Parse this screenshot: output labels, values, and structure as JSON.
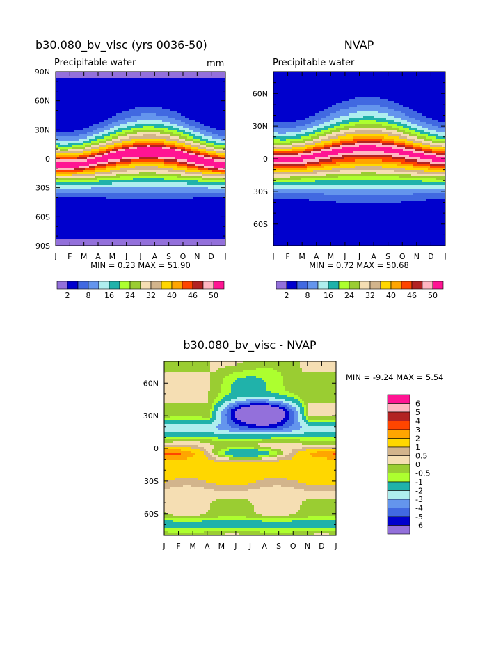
{
  "chart_data": [
    {
      "type": "heatmap",
      "id": "model",
      "title": "b30.080_bv_visc (yrs 0036-50)",
      "subtitle": "Precipitable water",
      "units": "mm",
      "y_ticks": [
        "90N",
        "60N",
        "30N",
        "0",
        "30S",
        "60S",
        "90S"
      ],
      "x_ticks": [
        "J",
        "F",
        "M",
        "A",
        "M",
        "J",
        "J",
        "A",
        "S",
        "O",
        "N",
        "D",
        "J"
      ],
      "stats": "MIN =     0.23 MAX =   51.90",
      "min": 0.23,
      "max": 51.9,
      "colorbar_labels": [
        "2",
        "8",
        "16",
        "24",
        "32",
        "40",
        "46",
        "50"
      ]
    },
    {
      "type": "heatmap",
      "id": "obs",
      "title": "NVAP",
      "subtitle": "Precipitable water",
      "y_ticks": [
        "60N",
        "30N",
        "0",
        "30S",
        "60S"
      ],
      "x_ticks": [
        "J",
        "F",
        "M",
        "A",
        "M",
        "J",
        "J",
        "A",
        "S",
        "O",
        "N",
        "D",
        "J"
      ],
      "stats": "MIN =     0.72 MAX =   50.68",
      "min": 0.72,
      "max": 50.68,
      "colorbar_labels": [
        "2",
        "8",
        "16",
        "24",
        "32",
        "40",
        "46",
        "50"
      ]
    },
    {
      "type": "heatmap",
      "id": "diff",
      "title": "b30.080_bv_visc - NVAP",
      "y_ticks": [
        "60N",
        "30N",
        "0",
        "30S",
        "60S"
      ],
      "x_ticks": [
        "J",
        "F",
        "M",
        "A",
        "M",
        "J",
        "J",
        "A",
        "S",
        "O",
        "N",
        "D",
        "J"
      ],
      "stats": "MIN =   -9.24 MAX =    5.54",
      "min": -9.24,
      "max": 5.54,
      "legend_labels": [
        "6",
        "5",
        "4",
        "3",
        "2",
        "1",
        "0.5",
        "0",
        "-0.5",
        "-1",
        "-2",
        "-3",
        "-4",
        "-5",
        "-6"
      ]
    }
  ],
  "palettes": {
    "abs": [
      "#9370db",
      "#0000cd",
      "#4169e1",
      "#6495ed",
      "#afeeee",
      "#20b2aa",
      "#adff2f",
      "#9acd32",
      "#f5deb3",
      "#d2b48c",
      "#ffd700",
      "#ffa500",
      "#ff4500",
      "#b22222",
      "#ffb6c1",
      "#ff1493"
    ],
    "diff": [
      "#ff1493",
      "#ffb6c1",
      "#b22222",
      "#ff4500",
      "#ffa500",
      "#ffd700",
      "#d2b48c",
      "#f5deb3",
      "#9acd32",
      "#adff2f",
      "#20b2aa",
      "#afeeee",
      "#6495ed",
      "#4169e1",
      "#0000cd",
      "#9370db"
    ]
  }
}
